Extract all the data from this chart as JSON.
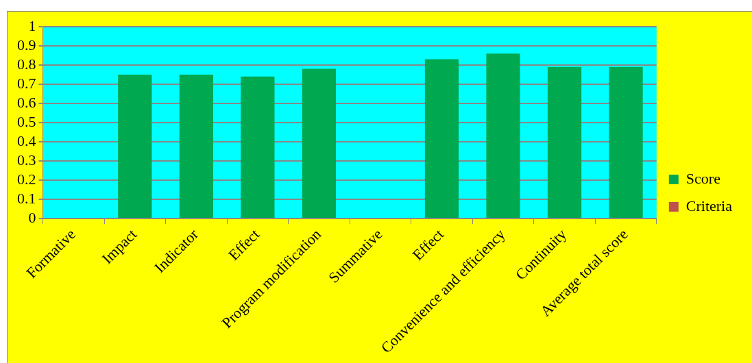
{
  "chart_data": {
    "type": "bar",
    "categories": [
      "Formative",
      "Impact",
      "Indicator",
      "Effect",
      "Program modification",
      "Summative",
      "Effect",
      "Convenience and efficiency",
      "Continuity",
      "Average total score"
    ],
    "series": [
      {
        "name": "Score",
        "color": "#00a84f",
        "values": [
          null,
          0.75,
          0.75,
          0.74,
          0.78,
          null,
          0.83,
          0.86,
          0.79,
          0.79
        ]
      },
      {
        "name": "Criteria",
        "color": "#c0504d",
        "values": [
          null,
          null,
          null,
          null,
          null,
          null,
          null,
          null,
          null,
          null
        ]
      }
    ],
    "ylim": [
      0,
      1
    ],
    "yticks": [
      0,
      0.1,
      0.2,
      0.3,
      0.4,
      0.5,
      0.6,
      0.7,
      0.8,
      0.9,
      1
    ],
    "grid": "y",
    "legend": "right"
  }
}
